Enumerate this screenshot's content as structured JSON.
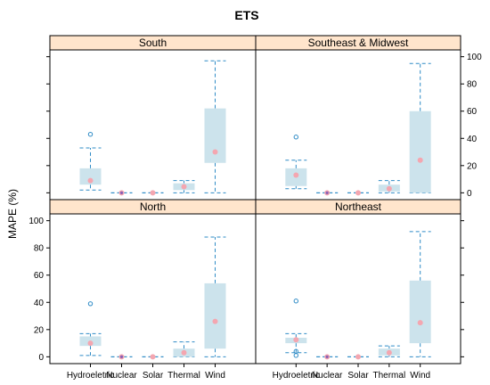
{
  "chart_data": {
    "type": "box",
    "title": "ETS",
    "ylabel": "MAPE (%)",
    "xlabel": "",
    "ylim": [
      -5,
      105
    ],
    "yticks": [
      0,
      20,
      40,
      60,
      80,
      100
    ],
    "categories": [
      "Hydroeletric",
      "Nuclear",
      "Solar",
      "Thermal",
      "Wind"
    ],
    "colors": {
      "strip": "#FFE5CC",
      "box_fill": "#CCE3EC",
      "whisker": "#2E8BC6",
      "mean": "#F4A6B0",
      "outlier": "#2E8BC6",
      "nuclear_center": "#8A5FB5"
    },
    "panels": [
      {
        "name": "South",
        "boxes": [
          {
            "category": "Hydroeletric",
            "min": 2,
            "q1": 6,
            "median": 8,
            "q3": 18,
            "max": 33,
            "mean": 9,
            "outliers": [
              43
            ]
          },
          {
            "category": "Nuclear",
            "min": 0,
            "q1": 0,
            "median": 0,
            "q3": 0,
            "max": 0,
            "mean": 0,
            "outliers": []
          },
          {
            "category": "Solar",
            "min": 0,
            "q1": 0,
            "median": 0,
            "q3": 0,
            "max": 0,
            "mean": 0,
            "outliers": []
          },
          {
            "category": "Thermal",
            "min": 0,
            "q1": 2,
            "median": 5,
            "q3": 7,
            "max": 9,
            "mean": 4.5,
            "outliers": []
          },
          {
            "category": "Wind",
            "min": 0,
            "q1": 22,
            "median": 30,
            "q3": 62,
            "max": 97,
            "mean": 30,
            "outliers": []
          }
        ]
      },
      {
        "name": "Southeast & Midwest",
        "boxes": [
          {
            "category": "Hydroeletric",
            "min": 3,
            "q1": 5,
            "median": 12,
            "q3": 18,
            "max": 24,
            "mean": 13,
            "outliers": [
              41
            ]
          },
          {
            "category": "Nuclear",
            "min": 0,
            "q1": 0,
            "median": 0,
            "q3": 0,
            "max": 0,
            "mean": 0,
            "outliers": []
          },
          {
            "category": "Solar",
            "min": 0,
            "q1": 0,
            "median": 0,
            "q3": 0,
            "max": 0,
            "mean": 0,
            "outliers": []
          },
          {
            "category": "Thermal",
            "min": 0,
            "q1": 1,
            "median": 3,
            "q3": 6,
            "max": 9,
            "mean": 3,
            "outliers": []
          },
          {
            "category": "Wind",
            "min": 0,
            "q1": 0,
            "median": 24,
            "q3": 60,
            "max": 95,
            "mean": 24,
            "outliers": []
          }
        ]
      },
      {
        "name": "North",
        "boxes": [
          {
            "category": "Hydroeletric",
            "min": 1,
            "q1": 8,
            "median": 12,
            "q3": 15,
            "max": 17,
            "mean": 10,
            "outliers": [
              39
            ]
          },
          {
            "category": "Nuclear",
            "min": 0,
            "q1": 0,
            "median": 0,
            "q3": 0,
            "max": 0,
            "mean": 0,
            "outliers": []
          },
          {
            "category": "Solar",
            "min": 0,
            "q1": 0,
            "median": 0,
            "q3": 0,
            "max": 0,
            "mean": 0,
            "outliers": []
          },
          {
            "category": "Thermal",
            "min": 0,
            "q1": 0,
            "median": 3,
            "q3": 6,
            "max": 11,
            "mean": 3,
            "outliers": []
          },
          {
            "category": "Wind",
            "min": 0,
            "q1": 6,
            "median": 26,
            "q3": 54,
            "max": 88,
            "mean": 26,
            "outliers": []
          }
        ]
      },
      {
        "name": "Northeast",
        "boxes": [
          {
            "category": "Hydroeletric",
            "min": 3,
            "q1": 10,
            "median": 12,
            "q3": 14,
            "max": 17,
            "mean": 12.5,
            "outliers": [
              41,
              4,
              1
            ]
          },
          {
            "category": "Nuclear",
            "min": 0,
            "q1": 0,
            "median": 0,
            "q3": 0,
            "max": 0,
            "mean": 0,
            "outliers": []
          },
          {
            "category": "Solar",
            "min": 0,
            "q1": 0,
            "median": 0,
            "q3": 0,
            "max": 0,
            "mean": 0,
            "outliers": []
          },
          {
            "category": "Thermal",
            "min": 0,
            "q1": 1,
            "median": 3,
            "q3": 6,
            "max": 8,
            "mean": 3,
            "outliers": []
          },
          {
            "category": "Wind",
            "min": 0,
            "q1": 10,
            "median": 25,
            "q3": 56,
            "max": 92,
            "mean": 25,
            "outliers": []
          }
        ]
      }
    ]
  }
}
